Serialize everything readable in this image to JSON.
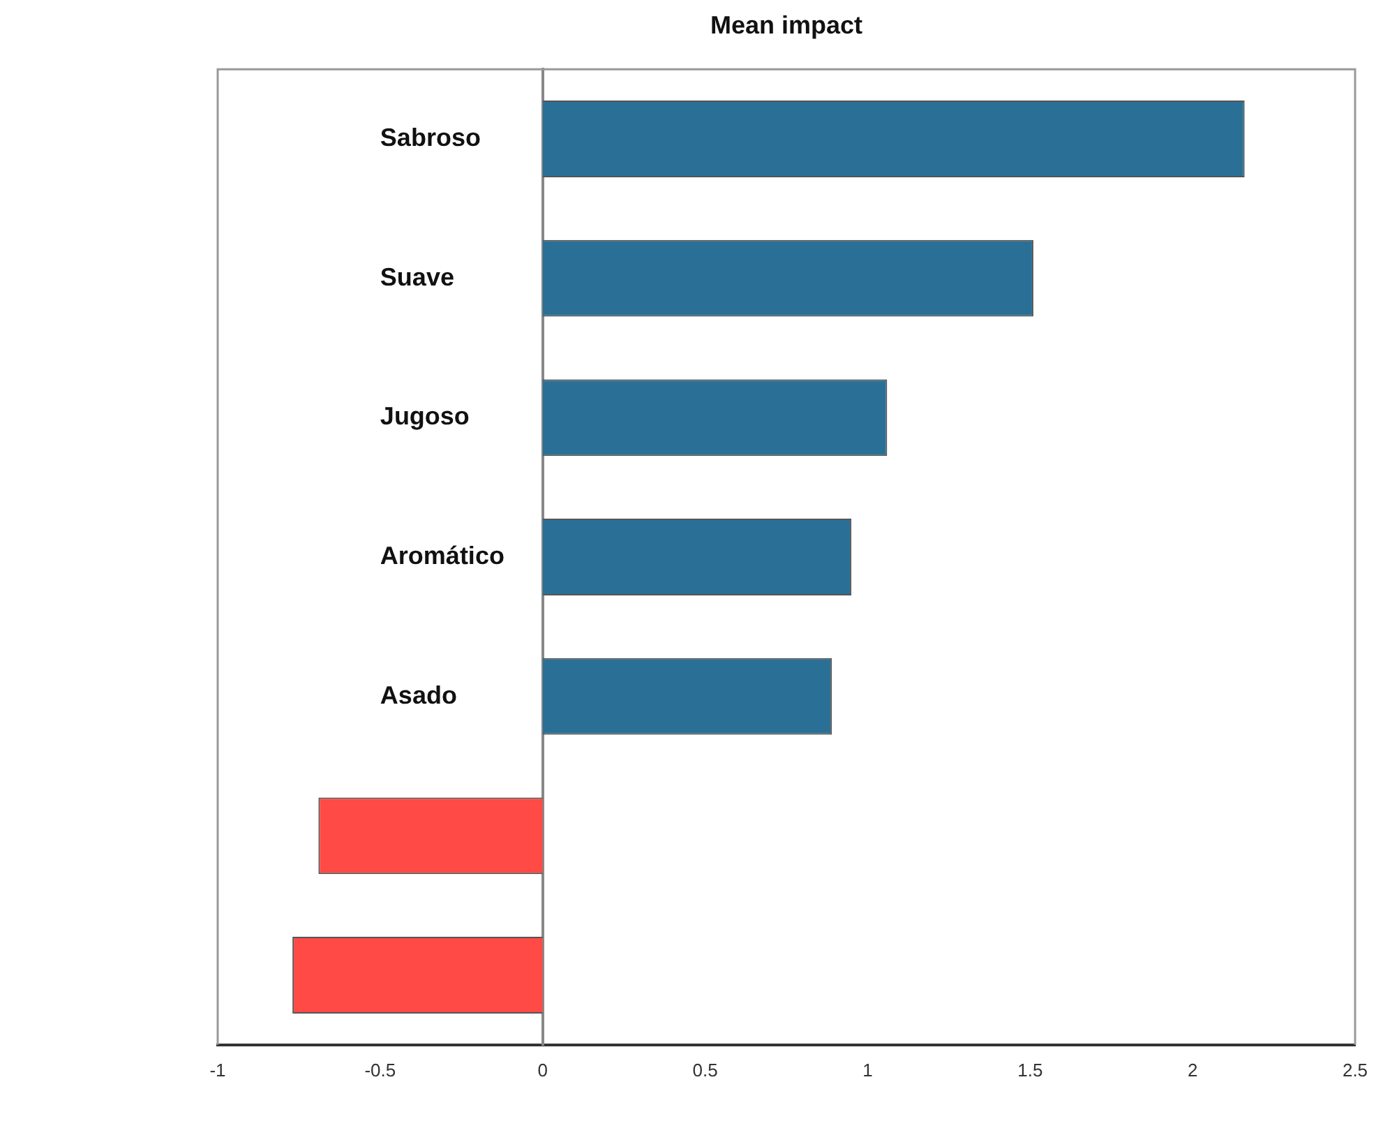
{
  "chart_data": {
    "type": "bar",
    "title": "Mean impact",
    "orientation": "horizontal",
    "categories": [
      "Sabroso",
      "Suave",
      "Jugoso",
      "Aromático",
      "Asado",
      null,
      null
    ],
    "values": [
      2.16,
      1.51,
      1.06,
      0.95,
      0.89,
      -0.69,
      -0.77
    ],
    "colors": [
      "#2a7096",
      "#2a7096",
      "#2a7096",
      "#2a7096",
      "#2a7096",
      "#ff4a45",
      "#ff4a45"
    ],
    "xlim": [
      -1,
      2.5
    ],
    "xticks": [
      -1,
      -0.5,
      0,
      0.5,
      1,
      1.5,
      2,
      2.5
    ],
    "grid": false,
    "legend": false
  }
}
